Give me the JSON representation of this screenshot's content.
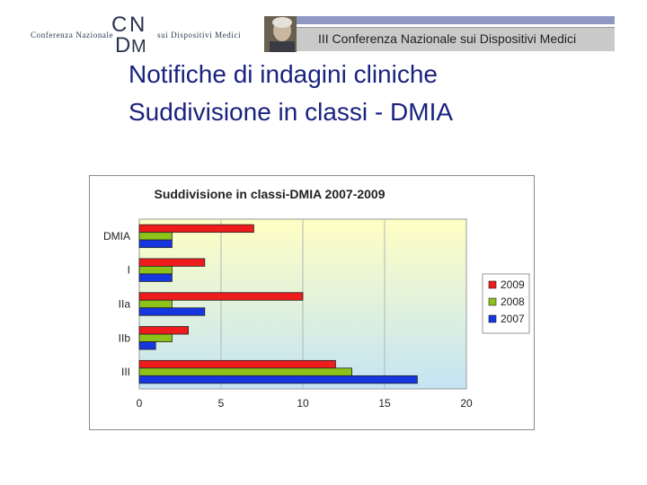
{
  "header": {
    "logo_left_text": "Conferenza Nazionale",
    "logo_letters": [
      "C",
      "N",
      "D",
      "M"
    ],
    "logo_right_text": "sui Dispositivi Medici",
    "banner_text": "III Conferenza Nazionale sui Dispositivi Medici"
  },
  "slide": {
    "title_line1": "Notifiche di indagini cliniche",
    "title_line2": "Suddivisione in classi - DMIA"
  },
  "colors": {
    "title": "#1a237e",
    "2009": "#ee1c1c",
    "2008": "#8cc21a",
    "2007": "#1636e0",
    "plot_bg_top": "#ffffc4",
    "plot_bg_bottom": "#c4e4f4"
  },
  "chart_data": {
    "type": "bar",
    "orientation": "horizontal",
    "title": "Suddivisione in classi-DMIA 2007-2009",
    "categories": [
      "DMIA",
      "I",
      "IIa",
      "IIb",
      "III"
    ],
    "series": [
      {
        "name": "2009",
        "values": [
          7,
          4,
          10,
          3,
          12
        ]
      },
      {
        "name": "2008",
        "values": [
          2,
          2,
          2,
          2,
          13
        ]
      },
      {
        "name": "2007",
        "values": [
          2,
          2,
          4,
          1,
          17
        ]
      }
    ],
    "xlim": [
      0,
      20
    ],
    "xticks": [
      0,
      5,
      10,
      15,
      20
    ],
    "grid": "vertical",
    "legend": "right"
  }
}
